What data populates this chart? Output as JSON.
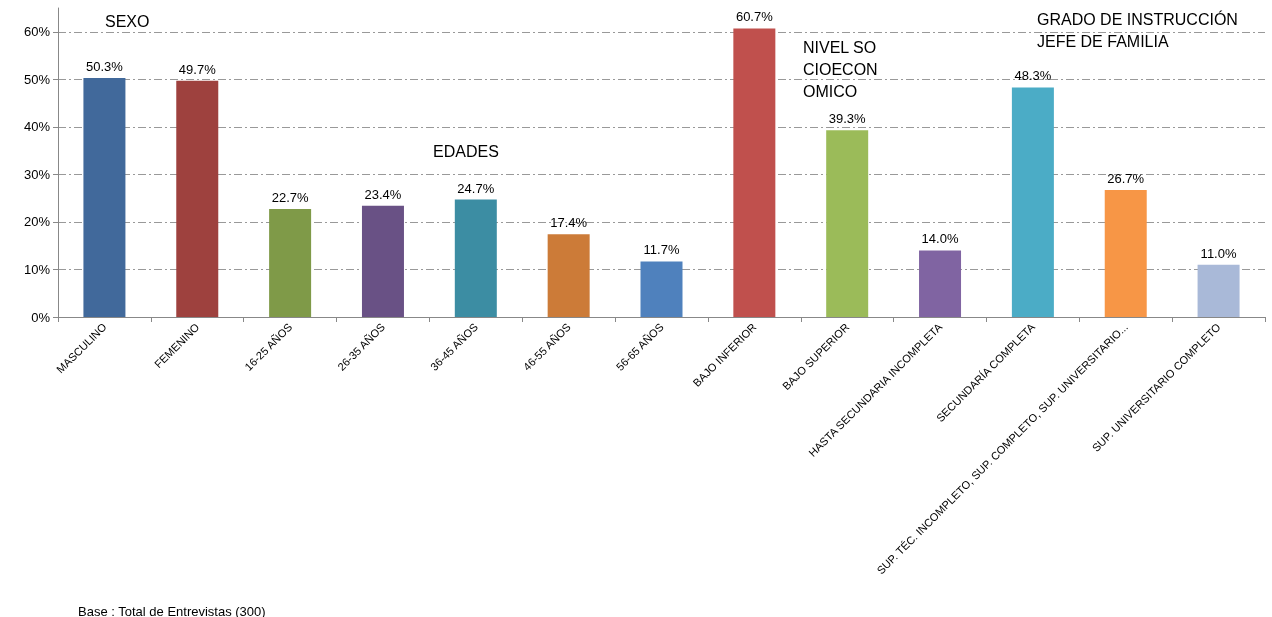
{
  "chart_data": {
    "type": "bar",
    "categories": [
      "MASCULINO",
      "FEMENINO",
      "16-25 AÑOS",
      "26-35 AÑOS",
      "36-45 AÑOS",
      "46-55 AÑOS",
      "56-65 AÑOS",
      "BAJO INFERIOR",
      "BAJO SUPERIOR",
      "HASTA SECUNDARIA INCOMPLETA",
      "SECUNDARÍA COMPLETA",
      "SUP. TÉC. INCOMPLETO, SUP. COMPLETO, SUP. UNIVERSITARIO...",
      "SUP. UNIVERSITARIO COMPLETO"
    ],
    "values": [
      50.3,
      49.7,
      22.7,
      23.4,
      24.7,
      17.4,
      11.7,
      60.7,
      39.3,
      14.0,
      48.3,
      26.7,
      11.0
    ],
    "value_labels": [
      "50.3%",
      "49.7%",
      "22.7%",
      "23.4%",
      "24.7%",
      "17.4%",
      "11.7%",
      "60.7%",
      "39.3%",
      "14.0%",
      "48.3%",
      "26.7%",
      "11.0%"
    ],
    "colors": [
      "#41699b",
      "#9e413e",
      "#7f9a48",
      "#695185",
      "#3c8da3",
      "#cc7b38",
      "#4f81bd",
      "#c0504d",
      "#9bbb59",
      "#8064a2",
      "#4bacc6",
      "#f79646",
      "#a9b9d8"
    ],
    "ylim": [
      0,
      65
    ],
    "yticks": [
      {
        "value": 0,
        "label": "0%"
      },
      {
        "value": 10,
        "label": "10%"
      },
      {
        "value": 20,
        "label": "20%"
      },
      {
        "value": 30,
        "label": "30%"
      },
      {
        "value": 40,
        "label": "40%"
      },
      {
        "value": 50,
        "label": "50%"
      },
      {
        "value": 60,
        "label": "60%"
      }
    ],
    "grid": true,
    "annotations": [
      "SEXO",
      "EDADES",
      "NIVEL SOCIOECONOMICO",
      "GRADO DE INSTRUCCIÓN JEFE DE FAMILIA",
      "Base : Total de Entrevistas (300)"
    ]
  }
}
